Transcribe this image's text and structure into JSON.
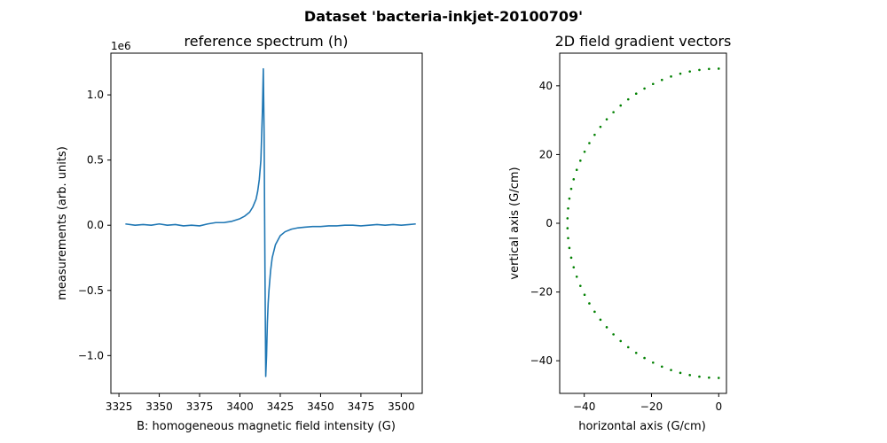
{
  "figure": {
    "suptitle": "Dataset 'bacteria-inkjet-20100709'"
  },
  "colors": {
    "spectrum": "#1f77b4",
    "gradient": "#008000"
  },
  "chart_data": [
    {
      "type": "line",
      "title": "reference spectrum (h)",
      "xlabel": "B: homogeneous magnetic field intensity (G)",
      "ylabel": "measurements (arb. units)",
      "y_offset_label": "1e6",
      "xlim": [
        3320,
        3513
      ],
      "ylim": [
        -1.29,
        1.32
      ],
      "xticks": [
        3325,
        3350,
        3375,
        3400,
        3425,
        3450,
        3475,
        3500
      ],
      "xtick_labels": [
        "3325",
        "3350",
        "3375",
        "3400",
        "3425",
        "3450",
        "3475",
        "3500"
      ],
      "yticks": [
        1.0,
        0.5,
        0.0,
        -0.5,
        -1.0
      ],
      "ytick_labels": [
        "1.0",
        "0.5",
        "0.0",
        "−0.5",
        "−1.0"
      ],
      "grid": false,
      "series": [
        {
          "x": [
            3329,
            3335,
            3340,
            3345,
            3350,
            3355,
            3360,
            3365,
            3370,
            3375,
            3380,
            3385,
            3390,
            3395,
            3400,
            3403,
            3406,
            3408,
            3410,
            3411,
            3412,
            3413,
            3413.5,
            3414,
            3414.5,
            3415,
            3415.5,
            3416,
            3416.5,
            3417,
            3417.5,
            3418,
            3419,
            3420,
            3422,
            3425,
            3428,
            3432,
            3436,
            3440,
            3445,
            3450,
            3455,
            3460,
            3465,
            3470,
            3475,
            3480,
            3485,
            3490,
            3495,
            3500,
            3505,
            3509
          ],
          "y": [
            0.01,
            0.0,
            0.005,
            0.0,
            0.01,
            0.0,
            0.005,
            -0.005,
            0.0,
            -0.005,
            0.01,
            0.02,
            0.02,
            0.03,
            0.05,
            0.07,
            0.1,
            0.14,
            0.2,
            0.26,
            0.35,
            0.5,
            0.7,
            0.9,
            1.2,
            0.7,
            -0.3,
            -1.16,
            -1.0,
            -0.75,
            -0.6,
            -0.5,
            -0.35,
            -0.25,
            -0.15,
            -0.08,
            -0.05,
            -0.03,
            -0.02,
            -0.015,
            -0.01,
            -0.01,
            -0.005,
            -0.005,
            0.0,
            0.0,
            -0.005,
            0.0,
            0.005,
            0.0,
            0.005,
            0.0,
            0.005,
            0.01
          ]
        }
      ]
    },
    {
      "type": "scatter",
      "title": "2D field gradient vectors",
      "xlabel": "horizontal axis (G/cm)",
      "ylabel": "vertical axis (G/cm)",
      "xlim": [
        -47.3,
        2.3
      ],
      "ylim": [
        -49.5,
        49.5
      ],
      "xticks": [
        -40,
        -20,
        0
      ],
      "xtick_labels": [
        "−40",
        "−20",
        "0"
      ],
      "yticks": [
        40,
        20,
        0,
        -20,
        -40
      ],
      "ytick_labels": [
        "40",
        "20",
        "0",
        "−20",
        "−40"
      ],
      "grid": false,
      "radius": 45,
      "angle_start_deg": 90,
      "angle_end_deg": 270,
      "point_count": 50
    }
  ]
}
